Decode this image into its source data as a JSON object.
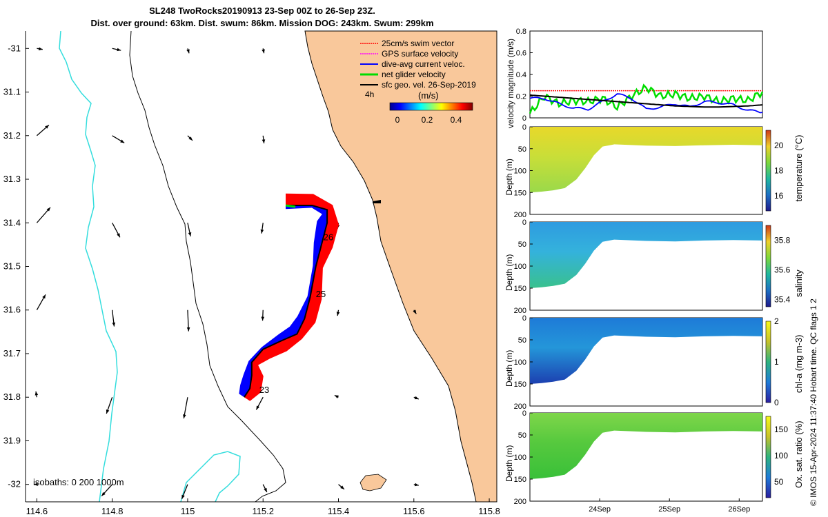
{
  "header": {
    "title_line1": "SL248 TwoRocks20190913 23-Sep 00Z to 26-Sep 23Z.",
    "title_line2": "Dist. over ground: 63km. Dist. swum: 86km. Mission DOG: 243km. Swum: 299km"
  },
  "credit": "© IMOS 15-Apr-2024 11:37:40 Hobart time. QC flags 1  2",
  "colors": {
    "land": "#F9C89B",
    "swim_vector": "#FF0000",
    "gps_velocity": "#FF00FF",
    "dive_avg": "#0000FF",
    "net_glider": "#00DD00",
    "sfc_geo": "#000000",
    "isobath_0": "#000000",
    "isobath_200": "#000000",
    "isobath_1000": "#33DDDD"
  },
  "chart_data": [
    {
      "type": "scatter",
      "name": "map",
      "xlim": [
        114.57,
        115.82
      ],
      "ylim": [
        -32.04,
        -30.96
      ],
      "xticks": [
        114.6,
        114.8,
        115.0,
        115.2,
        115.4,
        115.6,
        115.8
      ],
      "xtick_labels": [
        "114.6",
        "114.8",
        "115",
        "115.2",
        "115.4",
        "115.6",
        "115.8"
      ],
      "yticks": [
        -31.0,
        -31.1,
        -31.2,
        -31.3,
        -31.4,
        -31.5,
        -31.6,
        -31.7,
        -31.8,
        -31.9,
        -32.0
      ],
      "ytick_labels": [
        "-31",
        "31.1",
        "31.2",
        "31.3",
        "31.4",
        "31.5",
        "31.6",
        "31.7",
        "31.8",
        "31.9",
        "-32"
      ],
      "legend": {
        "placement": "top-right",
        "entries": [
          "25cm/s swim vector",
          "GPS surface velocity",
          "dive-avg current veloc.",
          "net glider velocity",
          "sfc geo. vel. 26-Sep-2019"
        ],
        "scale_label": "4h",
        "colorbar_label": "(m/s)",
        "colorbar_ticks": [
          "0",
          "0.2",
          "0.4"
        ],
        "colorbar_range": [
          0,
          0.5
        ]
      },
      "isobath_label": "isobaths: 0   200  1000m",
      "day_labels": [
        {
          "text": "23",
          "lon": 115.19,
          "lat": -31.79
        },
        {
          "text": "25",
          "lon": 115.34,
          "lat": -31.57
        },
        {
          "text": "26",
          "lon": 115.36,
          "lat": -31.44
        }
      ],
      "glider_track": [
        {
          "lon": 115.15,
          "lat": -31.8
        },
        {
          "lon": 115.165,
          "lat": -31.78
        },
        {
          "lon": 115.17,
          "lat": -31.75
        },
        {
          "lon": 115.17,
          "lat": -31.72
        },
        {
          "lon": 115.2,
          "lat": -31.69
        },
        {
          "lon": 115.25,
          "lat": -31.67
        },
        {
          "lon": 115.29,
          "lat": -31.655
        },
        {
          "lon": 115.31,
          "lat": -31.62
        },
        {
          "lon": 115.325,
          "lat": -31.57
        },
        {
          "lon": 115.34,
          "lat": -31.5
        },
        {
          "lon": 115.355,
          "lat": -31.45
        },
        {
          "lon": 115.37,
          "lat": -31.4
        },
        {
          "lon": 115.37,
          "lat": -31.37
        },
        {
          "lon": 115.33,
          "lat": -31.36
        },
        {
          "lon": 115.26,
          "lat": -31.36
        }
      ],
      "geo_vectors": [
        {
          "lon": 114.6,
          "lat": -31.0,
          "u": 0.012,
          "v": -0.002
        },
        {
          "lon": 114.8,
          "lat": -31.0,
          "u": 0.018,
          "v": -0.004
        },
        {
          "lon": 115.0,
          "lat": -31.0,
          "u": 0.003,
          "v": -0.01
        },
        {
          "lon": 115.2,
          "lat": -31.0,
          "u": 0.002,
          "v": -0.01
        },
        {
          "lon": 114.6,
          "lat": -31.2,
          "u": 0.025,
          "v": 0.022
        },
        {
          "lon": 114.8,
          "lat": -31.2,
          "u": 0.025,
          "v": -0.015
        },
        {
          "lon": 115.0,
          "lat": -31.2,
          "u": 0.01,
          "v": -0.01
        },
        {
          "lon": 115.2,
          "lat": -31.2,
          "u": 0.002,
          "v": -0.016
        },
        {
          "lon": 114.6,
          "lat": -31.4,
          "u": 0.028,
          "v": 0.032
        },
        {
          "lon": 114.8,
          "lat": -31.4,
          "u": 0.016,
          "v": -0.03
        },
        {
          "lon": 115.0,
          "lat": -31.4,
          "u": 0.006,
          "v": -0.028
        },
        {
          "lon": 115.2,
          "lat": -31.4,
          "u": -0.003,
          "v": -0.022
        },
        {
          "lon": 115.4,
          "lat": -31.4,
          "u": -0.002,
          "v": -0.012
        },
        {
          "lon": 114.6,
          "lat": -31.6,
          "u": 0.018,
          "v": 0.032
        },
        {
          "lon": 114.8,
          "lat": -31.6,
          "u": 0.004,
          "v": -0.034
        },
        {
          "lon": 115.0,
          "lat": -31.6,
          "u": 0.002,
          "v": -0.044
        },
        {
          "lon": 115.2,
          "lat": -31.6,
          "u": -0.001,
          "v": -0.022
        },
        {
          "lon": 115.4,
          "lat": -31.6,
          "u": -0.002,
          "v": -0.012
        },
        {
          "lon": 115.6,
          "lat": -31.6,
          "u": 0.005,
          "v": -0.008
        },
        {
          "lon": 114.6,
          "lat": -31.8,
          "u": -0.002,
          "v": 0.012
        },
        {
          "lon": 114.8,
          "lat": -31.8,
          "u": -0.012,
          "v": -0.034
        },
        {
          "lon": 115.0,
          "lat": -31.8,
          "u": -0.008,
          "v": -0.044
        },
        {
          "lon": 115.2,
          "lat": -31.8,
          "u": -0.014,
          "v": -0.026
        },
        {
          "lon": 115.4,
          "lat": -31.8,
          "u": -0.008,
          "v": 0.004
        },
        {
          "lon": 115.6,
          "lat": -31.8,
          "u": 0.01,
          "v": -0.004
        },
        {
          "lon": 114.6,
          "lat": -32.0,
          "u": -0.006,
          "v": 0.0
        },
        {
          "lon": 114.8,
          "lat": -32.0,
          "u": -0.022,
          "v": -0.024
        },
        {
          "lon": 115.0,
          "lat": -32.0,
          "u": -0.012,
          "v": -0.03
        },
        {
          "lon": 115.2,
          "lat": -32.0,
          "u": 0.008,
          "v": -0.016
        },
        {
          "lon": 115.4,
          "lat": -32.0,
          "u": 0.012,
          "v": -0.01
        },
        {
          "lon": 115.6,
          "lat": -32.0,
          "u": 0.01,
          "v": -0.002
        }
      ]
    },
    {
      "type": "line",
      "name": "velocity",
      "ylabel": "velocity magnitude (m/s)",
      "xlim": [
        0,
        80
      ],
      "ylim": [
        0,
        0.8
      ],
      "yticks": [
        0,
        0.2,
        0.4,
        0.6,
        0.8
      ],
      "ytick_labels": [
        "0",
        "0.2",
        "0.4",
        "0.6",
        "0.8"
      ],
      "series": [
        {
          "key": "swim",
          "values": [
            0.25,
            0.25,
            0.25,
            0.25,
            0.25,
            0.25,
            0.25,
            0.25,
            0.25,
            0.25,
            0.25,
            0.25,
            0.25,
            0.25,
            0.25,
            0.25,
            0.25
          ]
        },
        {
          "key": "net_glider",
          "values": [
            0.04,
            0.2,
            0.13,
            0.16,
            0.15,
            0.18,
            0.1,
            0.2,
            0.28,
            0.2,
            0.22,
            0.18,
            0.2,
            0.15,
            0.18,
            0.16,
            0.24
          ]
        },
        {
          "key": "dive_avg",
          "values": [
            0.18,
            0.18,
            0.13,
            0.09,
            0.08,
            0.15,
            0.22,
            0.18,
            0.08,
            0.1,
            0.13,
            0.1,
            0.15,
            0.14,
            0.12,
            0.07,
            0.05
          ]
        },
        {
          "key": "sfc_geo",
          "values": [
            0.21,
            0.2,
            0.19,
            0.18,
            0.17,
            0.16,
            0.15,
            0.14,
            0.13,
            0.12,
            0.11,
            0.105,
            0.1,
            0.1,
            0.105,
            0.11,
            0.12
          ]
        }
      ]
    },
    {
      "type": "heatmap",
      "name": "temperature",
      "ylabel": "Depth (m)",
      "colorbar_label": "temperature (°C)",
      "colorbar_ticks": [
        "16",
        "18",
        "20"
      ],
      "clim": [
        14.8,
        21.2
      ],
      "ylim": [
        200,
        0
      ],
      "yticks": [
        "0",
        "50",
        "100",
        "150",
        "200"
      ],
      "surface_value": 19.5,
      "deep_value": 17.0
    },
    {
      "type": "heatmap",
      "name": "salinity",
      "ylabel": "Depth (m)",
      "colorbar_label": "salinity",
      "colorbar_ticks": [
        "35.4",
        "35.6",
        "35.8"
      ],
      "clim": [
        35.35,
        35.9
      ],
      "ylim": [
        200,
        0
      ],
      "yticks": [
        "0",
        "50",
        "100",
        "150",
        "200"
      ],
      "surface_value": 35.52,
      "deep_value": 35.65
    },
    {
      "type": "heatmap",
      "name": "chla",
      "ylabel": "Depth (m)",
      "colorbar_label": "chl-a (mg m-3)",
      "colorbar_ticks": [
        "0",
        "1",
        "2"
      ],
      "clim": [
        0,
        2
      ],
      "ylim": [
        200,
        0
      ],
      "yticks": [
        "0",
        "50",
        "100",
        "150",
        "200"
      ],
      "surface_value": 0.4,
      "deep_value": 0.25
    },
    {
      "type": "heatmap",
      "name": "oxygen",
      "ylabel": "Depth (m)",
      "colorbar_label": "Ox. sat. ratio (%)",
      "colorbar_ticks": [
        "50",
        "100",
        "150"
      ],
      "clim": [
        20,
        175
      ],
      "ylim": [
        200,
        0
      ],
      "yticks": [
        "0",
        "50",
        "100",
        "150",
        "200"
      ],
      "surface_value": 115,
      "deep_value": 105
    }
  ],
  "time_axis": {
    "xlim": [
      0,
      80
    ],
    "ticks": [
      {
        "label": "24Sep",
        "t": 24
      },
      {
        "label": "25Sep",
        "t": 48
      },
      {
        "label": "26Sep",
        "t": 72
      }
    ],
    "profile_depth": [
      {
        "t": 0,
        "depth": 150
      },
      {
        "t": 4,
        "depth": 148
      },
      {
        "t": 8,
        "depth": 145
      },
      {
        "t": 12,
        "depth": 140
      },
      {
        "t": 16,
        "depth": 120
      },
      {
        "t": 19,
        "depth": 95
      },
      {
        "t": 22,
        "depth": 65
      },
      {
        "t": 25,
        "depth": 45
      },
      {
        "t": 29,
        "depth": 40
      },
      {
        "t": 40,
        "depth": 43
      },
      {
        "t": 50,
        "depth": 44
      },
      {
        "t": 60,
        "depth": 42
      },
      {
        "t": 70,
        "depth": 41
      },
      {
        "t": 80,
        "depth": 42
      }
    ]
  }
}
